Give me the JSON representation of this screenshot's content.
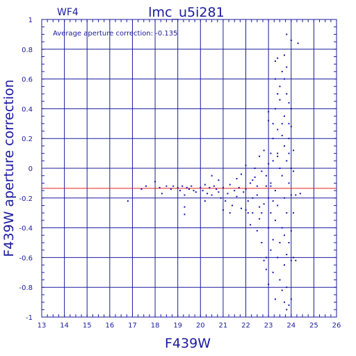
{
  "panel_label": "WF4",
  "chart_data": {
    "type": "scatter",
    "title": "lmc_u5i281",
    "xlabel": "F439W",
    "ylabel": "F439W aperture correction",
    "annotation": "Average aperture correction: -0.135",
    "xlim": [
      13,
      26
    ],
    "ylim": [
      -1,
      1
    ],
    "xticks": [
      13,
      14,
      15,
      16,
      17,
      18,
      19,
      20,
      21,
      22,
      23,
      24,
      25,
      26
    ],
    "yticks": [
      -1,
      -0.8,
      -0.6,
      -0.4,
      -0.2,
      0,
      0.2,
      0.4,
      0.6,
      0.8,
      1
    ],
    "ytick_labels": [
      "-1",
      "-0.8",
      "-0.6",
      "-0.4",
      "-0.2",
      "0",
      "0.2",
      "0.4",
      "0.6",
      "0.8",
      "1"
    ],
    "grid": true,
    "reference_line": {
      "y": -0.135,
      "color": "#e02020"
    },
    "colors": {
      "axes": "#1a1a9e",
      "points": "#1010b0"
    },
    "series": [
      {
        "points": [
          [
            16.8,
            -0.22
          ],
          [
            17.4,
            -0.14
          ],
          [
            17.6,
            -0.12
          ],
          [
            18.0,
            -0.09
          ],
          [
            18.2,
            -0.13
          ],
          [
            18.3,
            -0.17
          ],
          [
            18.5,
            -0.12
          ],
          [
            18.7,
            -0.14
          ],
          [
            18.8,
            -0.12
          ],
          [
            19.0,
            -0.13
          ],
          [
            19.1,
            -0.15
          ],
          [
            19.2,
            -0.12
          ],
          [
            19.3,
            -0.18
          ],
          [
            19.4,
            -0.13
          ],
          [
            19.5,
            -0.14
          ],
          [
            19.6,
            -0.12
          ],
          [
            19.7,
            -0.15
          ],
          [
            19.3,
            -0.26
          ],
          [
            19.3,
            -0.31
          ],
          [
            19.8,
            -0.16
          ],
          [
            20.0,
            -0.13
          ],
          [
            20.1,
            -0.15
          ],
          [
            20.2,
            -0.11
          ],
          [
            20.3,
            -0.17
          ],
          [
            20.4,
            -0.13
          ],
          [
            20.5,
            -0.18
          ],
          [
            20.6,
            -0.12
          ],
          [
            20.7,
            -0.14
          ],
          [
            20.8,
            -0.16
          ],
          [
            20.9,
            -0.2
          ],
          [
            21.0,
            -0.13
          ],
          [
            21.1,
            -0.22
          ],
          [
            21.2,
            -0.17
          ],
          [
            21.3,
            -0.11
          ],
          [
            21.4,
            -0.25
          ],
          [
            21.5,
            -0.15
          ],
          [
            21.6,
            -0.19
          ],
          [
            21.7,
            -0.13
          ],
          [
            21.8,
            -0.27
          ],
          [
            21.9,
            -0.16
          ],
          [
            20.2,
            -0.22
          ],
          [
            20.5,
            -0.05
          ],
          [
            20.8,
            -0.08
          ],
          [
            21.0,
            -0.28
          ],
          [
            21.3,
            -0.3
          ],
          [
            21.6,
            -0.07
          ],
          [
            21.8,
            -0.04
          ],
          [
            22.0,
            -0.14
          ],
          [
            22.1,
            -0.22
          ],
          [
            22.2,
            -0.1
          ],
          [
            22.3,
            -0.3
          ],
          [
            22.4,
            -0.06
          ],
          [
            22.5,
            -0.18
          ],
          [
            22.6,
            -0.34
          ],
          [
            22.7,
            -0.02
          ],
          [
            22.8,
            -0.24
          ],
          [
            22.9,
            -0.12
          ],
          [
            22.0,
            -0.28
          ],
          [
            22.2,
            -0.38
          ],
          [
            22.4,
            0.0
          ],
          [
            22.5,
            -0.42
          ],
          [
            22.6,
            0.08
          ],
          [
            22.7,
            -0.5
          ],
          [
            22.8,
            0.12
          ],
          [
            22.9,
            -0.6
          ],
          [
            22.0,
            0.02
          ],
          [
            22.3,
            -0.2
          ],
          [
            22.6,
            -0.26
          ],
          [
            22.8,
            -0.62
          ],
          [
            22.9,
            -0.68
          ],
          [
            23.0,
            -0.2
          ],
          [
            23.0,
            -0.4
          ],
          [
            23.0,
            0.03
          ],
          [
            23.0,
            -0.78
          ],
          [
            23.0,
            0.32
          ],
          [
            23.0,
            0.38
          ],
          [
            23.1,
            -0.1
          ],
          [
            23.1,
            -0.3
          ],
          [
            23.1,
            -0.55
          ],
          [
            23.1,
            0.1
          ],
          [
            23.2,
            -0.22
          ],
          [
            23.2,
            -0.48
          ],
          [
            23.2,
            0.2
          ],
          [
            23.2,
            -0.7
          ],
          [
            23.2,
            0.05
          ],
          [
            23.3,
            0.72
          ],
          [
            23.3,
            0.6
          ],
          [
            23.3,
            0.4
          ],
          [
            23.3,
            -0.15
          ],
          [
            23.3,
            -0.35
          ],
          [
            23.3,
            -0.88
          ],
          [
            23.4,
            0.26
          ],
          [
            23.4,
            0.5
          ],
          [
            23.4,
            0.74
          ],
          [
            23.4,
            -0.25
          ],
          [
            23.4,
            -0.6
          ],
          [
            23.4,
            0.1
          ],
          [
            23.5,
            0.46
          ],
          [
            23.5,
            0.55
          ],
          [
            23.5,
            0.0
          ],
          [
            23.5,
            -0.5
          ],
          [
            23.5,
            -0.75
          ],
          [
            23.6,
            0.3
          ],
          [
            23.6,
            -0.05
          ],
          [
            23.6,
            -0.4
          ],
          [
            23.6,
            0.65
          ],
          [
            23.6,
            -0.82
          ],
          [
            23.7,
            0.76
          ],
          [
            23.7,
            0.6
          ],
          [
            23.7,
            0.35
          ],
          [
            23.7,
            0.15
          ],
          [
            23.7,
            -0.2
          ],
          [
            23.7,
            -0.45
          ],
          [
            23.7,
            -0.9
          ],
          [
            23.7,
            -0.65
          ],
          [
            23.8,
            0.9
          ],
          [
            23.8,
            0.68
          ],
          [
            23.8,
            0.5
          ],
          [
            23.8,
            0.05
          ],
          [
            23.8,
            -0.3
          ],
          [
            23.8,
            -0.58
          ],
          [
            23.8,
            -0.8
          ],
          [
            23.8,
            -0.95
          ],
          [
            23.9,
            0.44
          ],
          [
            23.9,
            0.2
          ],
          [
            23.9,
            -0.1
          ],
          [
            23.9,
            -0.5
          ],
          [
            23.9,
            0.1
          ],
          [
            23.9,
            -0.92
          ],
          [
            24.0,
            0.86
          ],
          [
            24.0,
            0.28
          ],
          [
            24.0,
            0.0
          ],
          [
            24.0,
            -0.18
          ],
          [
            24.0,
            -0.42
          ],
          [
            24.0,
            -0.62
          ],
          [
            24.0,
            -0.88
          ],
          [
            24.1,
            0.12
          ],
          [
            24.1,
            -0.3
          ],
          [
            24.1,
            -0.6
          ],
          [
            24.2,
            -0.62
          ],
          [
            24.3,
            0.84
          ],
          [
            24.4,
            -0.17
          ],
          [
            24.2,
            -0.18
          ],
          [
            24.1,
            -0.02
          ],
          [
            24.0,
            0.4
          ],
          [
            23.9,
            0.3
          ],
          [
            23.6,
            0.22
          ],
          [
            23.4,
            0.08
          ],
          [
            23.2,
            0.3
          ],
          [
            23.1,
            -0.12
          ],
          [
            22.9,
            -0.05
          ],
          [
            22.7,
            -0.3
          ],
          [
            22.5,
            -0.12
          ],
          [
            22.3,
            -0.08
          ],
          [
            22.1,
            -0.3
          ]
        ]
      }
    ]
  }
}
